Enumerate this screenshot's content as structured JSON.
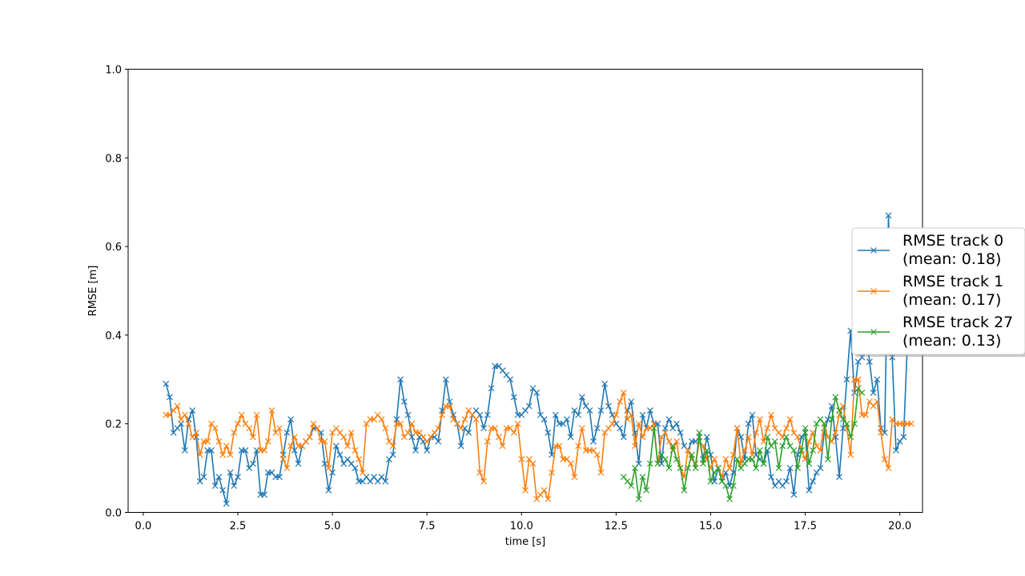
{
  "chart_data": {
    "type": "line",
    "title": "",
    "xlabel": "time [s]",
    "ylabel": "RMSE [m]",
    "xlim": [
      -0.4,
      20.6
    ],
    "ylim": [
      0,
      1.0
    ],
    "xticks": [
      0.0,
      2.5,
      5.0,
      7.5,
      10.0,
      12.5,
      15.0,
      17.5,
      20.0
    ],
    "xtick_labels": [
      "0.0",
      "2.5",
      "5.0",
      "7.5",
      "10.0",
      "12.5",
      "15.0",
      "17.5",
      "20.0"
    ],
    "yticks": [
      0.0,
      0.2,
      0.4,
      0.6,
      0.8,
      1.0
    ],
    "ytick_labels": [
      "0.0",
      "0.2",
      "0.4",
      "0.6",
      "0.8",
      "1.0"
    ],
    "grid": false,
    "legend_position": "right (partially outside axes)",
    "marker": "x",
    "series": [
      {
        "name_line1": "RMSE track 0",
        "name_line2": "(mean: 0.18)",
        "color": "#1f77b4",
        "x_start": 0.6,
        "x_step": 0.1,
        "values": [
          0.29,
          0.26,
          0.18,
          0.19,
          0.2,
          0.14,
          0.21,
          0.23,
          0.17,
          0.07,
          0.08,
          0.14,
          0.14,
          0.06,
          0.08,
          0.05,
          0.02,
          0.09,
          0.06,
          0.08,
          0.14,
          0.14,
          0.1,
          0.11,
          0.14,
          0.04,
          0.04,
          0.09,
          0.09,
          0.08,
          0.08,
          0.13,
          0.18,
          0.21,
          0.14,
          0.11,
          0.15,
          0.16,
          0.17,
          0.19,
          0.19,
          0.18,
          0.11,
          0.05,
          0.09,
          0.15,
          0.13,
          0.11,
          0.12,
          0.11,
          0.1,
          0.07,
          0.07,
          0.08,
          0.07,
          0.08,
          0.07,
          0.08,
          0.07,
          0.12,
          0.13,
          0.21,
          0.3,
          0.25,
          0.22,
          0.17,
          0.14,
          0.17,
          0.16,
          0.14,
          0.17,
          0.17,
          0.16,
          0.23,
          0.3,
          0.25,
          0.22,
          0.2,
          0.15,
          0.19,
          0.18,
          0.22,
          0.23,
          0.22,
          0.19,
          0.22,
          0.28,
          0.33,
          0.33,
          0.32,
          0.31,
          0.3,
          0.26,
          0.22,
          0.22,
          0.23,
          0.24,
          0.28,
          0.27,
          0.22,
          0.21,
          0.18,
          0.13,
          0.22,
          0.2,
          0.2,
          0.21,
          0.17,
          0.23,
          0.22,
          0.26,
          0.24,
          0.23,
          0.16,
          0.19,
          0.23,
          0.29,
          0.24,
          0.22,
          0.2,
          0.19,
          0.17,
          0.23,
          0.25,
          0.18,
          0.11,
          0.22,
          0.19,
          0.23,
          0.2,
          0.2,
          0.11,
          0.19,
          0.21,
          0.19,
          0.2,
          0.18,
          0.15,
          0.14,
          0.16,
          0.16,
          0.17,
          0.12,
          0.17,
          0.13,
          0.07,
          0.1,
          0.07,
          0.09,
          0.06,
          0.09,
          0.19,
          0.17,
          0.12,
          0.2,
          0.22,
          0.13,
          0.12,
          0.11,
          0.14,
          0.08,
          0.06,
          0.07,
          0.06,
          0.07,
          0.1,
          0.04,
          0.13,
          0.17,
          0.18,
          0.05,
          0.07,
          0.09,
          0.1,
          0.18,
          0.21,
          0.24,
          0.17,
          0.08,
          0.19,
          0.3,
          0.41,
          0.27,
          0.34,
          0.35,
          0.42,
          0.34,
          0.27,
          0.3,
          0.19,
          0.18,
          0.67,
          0.35,
          0.14,
          0.16,
          0.17,
          0.38
        ]
      },
      {
        "name_line1": "RMSE track 1",
        "name_line2": "(mean: 0.17)",
        "color": "#ff7f0e",
        "x_start": 0.6,
        "x_step": 0.1,
        "values": [
          0.22,
          0.22,
          0.23,
          0.24,
          0.21,
          0.22,
          0.2,
          0.17,
          0.18,
          0.13,
          0.16,
          0.16,
          0.2,
          0.19,
          0.16,
          0.13,
          0.15,
          0.13,
          0.18,
          0.2,
          0.22,
          0.2,
          0.19,
          0.17,
          0.22,
          0.14,
          0.14,
          0.16,
          0.23,
          0.18,
          0.19,
          0.12,
          0.1,
          0.15,
          0.17,
          0.15,
          0.15,
          0.16,
          0.17,
          0.2,
          0.19,
          0.16,
          0.16,
          0.1,
          0.18,
          0.19,
          0.18,
          0.17,
          0.15,
          0.18,
          0.14,
          0.12,
          0.09,
          0.2,
          0.21,
          0.21,
          0.22,
          0.21,
          0.19,
          0.16,
          0.15,
          0.2,
          0.2,
          0.17,
          0.18,
          0.2,
          0.18,
          0.18,
          0.17,
          0.16,
          0.17,
          0.18,
          0.19,
          0.22,
          0.24,
          0.24,
          0.21,
          0.2,
          0.19,
          0.21,
          0.23,
          0.22,
          0.21,
          0.09,
          0.07,
          0.16,
          0.19,
          0.19,
          0.17,
          0.15,
          0.19,
          0.19,
          0.18,
          0.2,
          0.12,
          0.05,
          0.12,
          0.11,
          0.03,
          0.04,
          0.05,
          0.03,
          0.09,
          0.15,
          0.15,
          0.12,
          0.12,
          0.11,
          0.08,
          0.15,
          0.19,
          0.14,
          0.14,
          0.14,
          0.13,
          0.09,
          0.18,
          0.19,
          0.2,
          0.22,
          0.25,
          0.27,
          0.21,
          0.22,
          0.15,
          0.2,
          0.17,
          0.19,
          0.19,
          0.2,
          0.11,
          0.17,
          0.18,
          0.16,
          0.14,
          0.16,
          0.1,
          0.08,
          0.14,
          0.12,
          0.11,
          0.16,
          0.15,
          0.12,
          0.1,
          0.12,
          0.1,
          0.08,
          0.12,
          0.1,
          0.13,
          0.19,
          0.11,
          0.14,
          0.17,
          0.13,
          0.18,
          0.21,
          0.16,
          0.19,
          0.22,
          0.19,
          0.18,
          0.17,
          0.19,
          0.21,
          0.18,
          0.17,
          0.14,
          0.12,
          0.16,
          0.18,
          0.15,
          0.14,
          0.2,
          0.17,
          0.16,
          0.18,
          0.22,
          0.24,
          0.19,
          0.13,
          0.3,
          0.3,
          0.22,
          0.22,
          0.25,
          0.24,
          0.25,
          0.18,
          0.12,
          0.1,
          0.21,
          0.2,
          0.2,
          0.2,
          0.2,
          0.2
        ]
      },
      {
        "name_line1": "RMSE track 27",
        "name_line2": "(mean: 0.13)",
        "color": "#2ca02c",
        "x_start": 12.7,
        "x_step": 0.1,
        "values": [
          0.08,
          0.07,
          0.06,
          0.1,
          0.03,
          0.08,
          0.05,
          0.11,
          0.19,
          0.11,
          0.13,
          0.12,
          0.1,
          0.15,
          0.12,
          0.1,
          0.05,
          0.1,
          0.13,
          0.1,
          0.18,
          0.11,
          0.14,
          0.07,
          0.09,
          0.1,
          0.07,
          0.06,
          0.03,
          0.06,
          0.12,
          0.1,
          0.11,
          0.12,
          0.12,
          0.1,
          0.14,
          0.11,
          0.17,
          0.15,
          0.16,
          0.1,
          0.15,
          0.17,
          0.15,
          0.14,
          0.1,
          0.14,
          0.19,
          0.11,
          0.14,
          0.2,
          0.21,
          0.2,
          0.12,
          0.21,
          0.26,
          0.23,
          0.21,
          0.2,
          0.17,
          0.2,
          0.28,
          0.27
        ]
      }
    ]
  }
}
